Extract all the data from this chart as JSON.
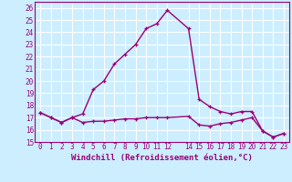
{
  "xlabel": "Windchill (Refroidissement éolien,°C)",
  "background_color": "#cceeff",
  "grid_color": "#ffffff",
  "line_color": "#990077",
  "xlim": [
    -0.5,
    23.5
  ],
  "ylim": [
    15,
    26.5
  ],
  "yticks": [
    15,
    16,
    17,
    18,
    19,
    20,
    21,
    22,
    23,
    24,
    25,
    26
  ],
  "xticks": [
    0,
    1,
    2,
    3,
    4,
    5,
    6,
    7,
    8,
    9,
    10,
    11,
    12,
    14,
    15,
    16,
    17,
    18,
    19,
    20,
    21,
    22,
    23
  ],
  "xtick_labels": [
    "0",
    "1",
    "2",
    "3",
    "4",
    "5",
    "6",
    "7",
    "8",
    "9",
    "10",
    "11",
    "12",
    "14",
    "15",
    "16",
    "17",
    "18",
    "19",
    "20",
    "21",
    "22",
    "23"
  ],
  "curve1_x": [
    0,
    1,
    2,
    3,
    4,
    5,
    6,
    7,
    8,
    9,
    10,
    11,
    12,
    14,
    15,
    16,
    17,
    18,
    19,
    20,
    21,
    22,
    23
  ],
  "curve1_y": [
    17.4,
    17.0,
    16.6,
    17.0,
    17.3,
    19.3,
    20.0,
    21.4,
    22.2,
    23.0,
    24.3,
    24.7,
    25.8,
    24.3,
    18.5,
    17.9,
    17.5,
    17.3,
    17.5,
    17.5,
    15.9,
    15.4,
    15.7
  ],
  "curve2_x": [
    0,
    1,
    2,
    3,
    4,
    5,
    6,
    7,
    8,
    9,
    10,
    11,
    12,
    14,
    15,
    16,
    17,
    18,
    19,
    20,
    21,
    22,
    23
  ],
  "curve2_y": [
    17.4,
    17.0,
    16.6,
    17.0,
    16.6,
    16.7,
    16.7,
    16.8,
    16.9,
    16.9,
    17.0,
    17.0,
    17.0,
    17.1,
    16.4,
    16.3,
    16.5,
    16.6,
    16.8,
    17.0,
    15.9,
    15.4,
    15.7
  ],
  "marker": "+",
  "markersize": 3,
  "linewidth": 1.0,
  "tick_fontsize": 5.5,
  "label_fontsize": 6.5
}
